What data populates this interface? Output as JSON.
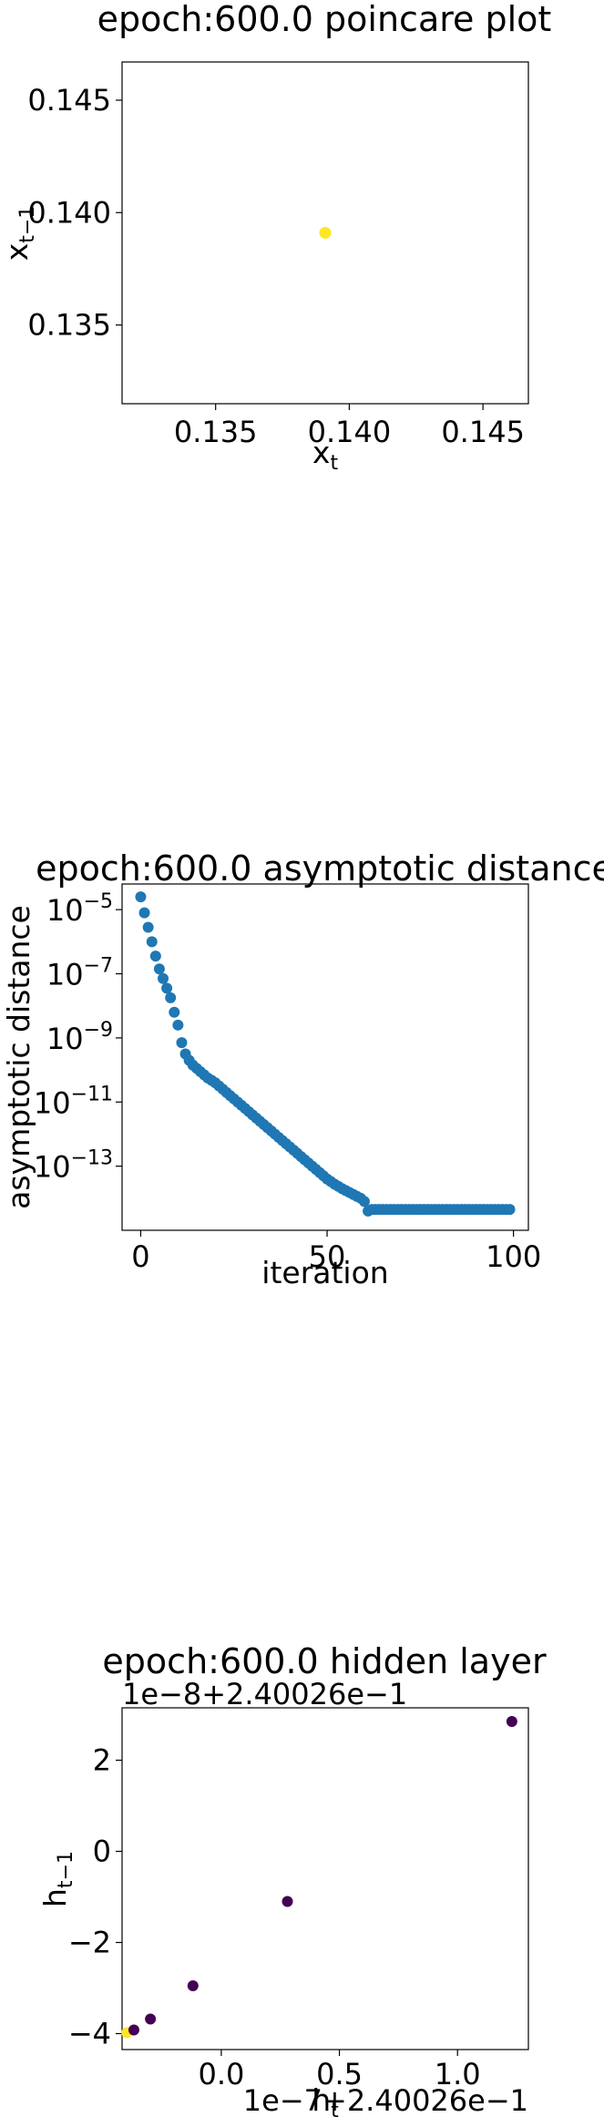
{
  "chart_data": [
    {
      "type": "scatter",
      "title": "epoch:600.0 poincare plot",
      "xlabel_base": "x",
      "xlabel_sub": "t",
      "ylabel_base": "x",
      "ylabel_sub": "t−1",
      "xlim": [
        0.1315,
        0.1467
      ],
      "ylim": [
        0.1315,
        0.1467
      ],
      "xticks": [
        0.135,
        0.14,
        0.145
      ],
      "xtick_labels": [
        "0.135",
        "0.140",
        "0.145"
      ],
      "yticks": [
        0.135,
        0.14,
        0.145
      ],
      "ytick_labels": [
        "0.135",
        "0.140",
        "0.145"
      ],
      "points": [
        {
          "x": 0.1391,
          "y": 0.1391
        }
      ],
      "point_color": "#fde725"
    },
    {
      "type": "scatter",
      "title": "epoch:600.0 asymptotic distance",
      "xlabel": "iteration",
      "ylabel": "asymptotic distance",
      "xlim": [
        -5,
        104
      ],
      "ylog": true,
      "ylog_lim": [
        -15.0,
        -4.2
      ],
      "xticks": [
        0,
        50,
        100
      ],
      "xtick_labels": [
        "0",
        "50",
        "100"
      ],
      "yticks_exp": [
        -5,
        -7,
        -9,
        -11,
        -13
      ],
      "ytick_base": "10",
      "ytick_exponents": [
        "−5",
        "−7",
        "−9",
        "−11",
        "−13"
      ],
      "point_color": "#1f77b4",
      "series": [
        {
          "x": [
            0,
            1,
            2,
            3,
            4,
            5,
            6,
            7,
            8,
            9,
            10,
            11,
            12,
            13,
            14,
            15,
            16,
            17,
            18,
            19,
            20,
            21,
            22,
            23,
            24,
            25,
            26,
            27,
            28,
            29,
            30,
            31,
            32,
            33,
            34,
            35,
            36,
            37,
            38,
            39,
            40,
            41,
            42,
            43,
            44,
            45,
            46,
            47,
            48,
            49,
            50,
            51,
            52,
            53,
            54,
            55,
            56,
            57,
            58,
            59,
            60,
            61,
            62,
            63,
            64,
            65,
            66,
            67,
            68,
            69,
            70,
            71,
            72,
            73,
            74,
            75,
            76,
            77,
            78,
            79,
            80,
            81,
            82,
            83,
            84,
            85,
            86,
            87,
            88,
            89,
            90,
            91,
            92,
            93,
            94,
            95,
            96,
            97,
            98,
            99
          ],
          "log10_y": [
            -4.6,
            -5.1,
            -5.55,
            -6.0,
            -6.45,
            -6.85,
            -7.15,
            -7.45,
            -7.75,
            -8.2,
            -8.6,
            -9.15,
            -9.5,
            -9.7,
            -9.85,
            -9.95,
            -10.05,
            -10.15,
            -10.25,
            -10.32,
            -10.4,
            -10.5,
            -10.6,
            -10.7,
            -10.8,
            -10.9,
            -11.0,
            -11.1,
            -11.2,
            -11.3,
            -11.4,
            -11.5,
            -11.6,
            -11.7,
            -11.8,
            -11.9,
            -12.0,
            -12.1,
            -12.2,
            -12.3,
            -12.4,
            -12.5,
            -12.6,
            -12.7,
            -12.8,
            -12.9,
            -13.0,
            -13.1,
            -13.2,
            -13.3,
            -13.4,
            -13.48,
            -13.56,
            -13.63,
            -13.7,
            -13.76,
            -13.82,
            -13.88,
            -13.94,
            -14.0,
            -14.1,
            -14.4,
            -14.35,
            -14.35,
            -14.35,
            -14.35,
            -14.35,
            -14.35,
            -14.35,
            -14.35,
            -14.35,
            -14.35,
            -14.35,
            -14.35,
            -14.35,
            -14.35,
            -14.35,
            -14.35,
            -14.35,
            -14.35,
            -14.35,
            -14.35,
            -14.35,
            -14.35,
            -14.35,
            -14.35,
            -14.35,
            -14.35,
            -14.35,
            -14.35,
            -14.35,
            -14.35,
            -14.35,
            -14.35,
            -14.35,
            -14.35,
            -14.35,
            -14.35,
            -14.35,
            -14.35
          ]
        }
      ]
    },
    {
      "type": "scatter",
      "title": "epoch:600.0 hidden layer",
      "xlabel_base": "h",
      "xlabel_sub": "t",
      "ylabel_base": "h",
      "ylabel_sub": "t−1",
      "x_offset_text": "1e−7+2.40026e−1",
      "y_offset_text": "1e−8+2.40026e−1",
      "xlim": [
        -0.42,
        1.3
      ],
      "ylim": [
        -4.35,
        3.15
      ],
      "xticks": [
        0.0,
        0.5,
        1.0
      ],
      "xtick_labels": [
        "0.0",
        "0.5",
        "1.0"
      ],
      "yticks": [
        2,
        0,
        -2,
        -4
      ],
      "ytick_labels": [
        "2",
        "0",
        "−2",
        "−4"
      ],
      "points": [
        {
          "x": -0.4,
          "y": -3.98,
          "color": "#fde725"
        },
        {
          "x": -0.37,
          "y": -3.92,
          "color": "#440154"
        },
        {
          "x": -0.3,
          "y": -3.68,
          "color": "#440154"
        },
        {
          "x": -0.12,
          "y": -2.95,
          "color": "#440154"
        },
        {
          "x": 0.28,
          "y": -1.1,
          "color": "#440154"
        },
        {
          "x": 1.23,
          "y": 2.85,
          "color": "#440154"
        }
      ]
    }
  ]
}
